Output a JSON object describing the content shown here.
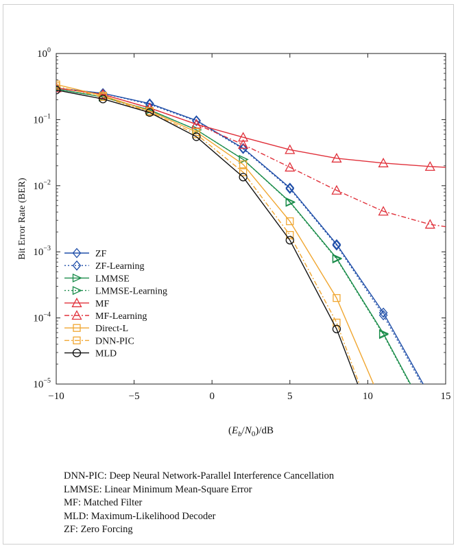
{
  "chart_data": {
    "type": "line",
    "xlabel": "(Eb/N0)/dB",
    "ylabel": "Bit Error Rate (BER)",
    "yscale": "log",
    "xlim": [
      -10,
      15
    ],
    "ylim": [
      1e-05,
      1
    ],
    "x_ticks": [
      "−10",
      "−5",
      "0",
      "5",
      "10",
      "15"
    ],
    "legend_position": "lower-left",
    "grid": false,
    "series": [
      {
        "name": "ZF",
        "color": "#1f4ea8",
        "marker": "diamond",
        "dash": "solid",
        "x": [
          -10,
          -7,
          -4,
          -1,
          2,
          5,
          8,
          11,
          14
        ],
        "y": [
          0.3,
          0.25,
          0.175,
          0.097,
          0.037,
          0.0093,
          0.0013,
          0.00012,
          6.5e-06
        ]
      },
      {
        "name": "ZF-Learning",
        "color": "#1f4ea8",
        "marker": "diamond",
        "dash": "dot",
        "x": [
          -10,
          -7,
          -4,
          -1,
          2,
          5,
          8,
          11,
          14
        ],
        "y": [
          0.3,
          0.25,
          0.17,
          0.095,
          0.036,
          0.009,
          0.00125,
          0.00011,
          6e-06
        ]
      },
      {
        "name": "LMMSE",
        "color": "#1a8c4a",
        "marker": "triangle-right",
        "dash": "solid",
        "x": [
          -10,
          -7,
          -4,
          -1,
          2,
          5,
          8,
          11,
          14
        ],
        "y": [
          0.29,
          0.22,
          0.14,
          0.07,
          0.025,
          0.0057,
          0.0008,
          5.8e-05,
          2.8e-06
        ]
      },
      {
        "name": "LMMSE-Learning",
        "color": "#1a8c4a",
        "marker": "triangle-right",
        "dash": "dot",
        "x": [
          -10,
          -7,
          -4,
          -1,
          2,
          5,
          8,
          11,
          14
        ],
        "y": [
          0.29,
          0.22,
          0.14,
          0.07,
          0.025,
          0.0056,
          0.00078,
          5.6e-05,
          2.7e-06
        ]
      },
      {
        "name": "MF",
        "color": "#e0303a",
        "marker": "triangle-up",
        "dash": "solid",
        "x": [
          -10,
          -7,
          -4,
          -1,
          2,
          5,
          8,
          11,
          14,
          15
        ],
        "y": [
          0.3,
          0.24,
          0.15,
          0.085,
          0.054,
          0.035,
          0.026,
          0.022,
          0.0195,
          0.019
        ]
      },
      {
        "name": "MF-Learning",
        "color": "#e0303a",
        "marker": "triangle-up",
        "dash": "dashdot",
        "x": [
          -10,
          -7,
          -4,
          -1,
          2,
          5,
          8,
          11,
          14,
          15
        ],
        "y": [
          0.3,
          0.24,
          0.15,
          0.085,
          0.042,
          0.019,
          0.0085,
          0.0041,
          0.0026,
          0.0024
        ]
      },
      {
        "name": "Direct-L",
        "color": "#f0a630",
        "marker": "square",
        "dash": "solid",
        "x": [
          -10,
          -7,
          -4,
          -1,
          2,
          5,
          8,
          11
        ],
        "y": [
          0.34,
          0.23,
          0.135,
          0.065,
          0.021,
          0.0029,
          0.0002,
          4.5e-06
        ]
      },
      {
        "name": "DNN-PIC",
        "color": "#f0a630",
        "marker": "square",
        "dash": "dashdot",
        "x": [
          -10,
          -7,
          -4,
          -1,
          2,
          5,
          8,
          10
        ],
        "y": [
          0.32,
          0.22,
          0.13,
          0.06,
          0.016,
          0.0018,
          8.5e-05,
          4.5e-06
        ]
      },
      {
        "name": "MLD",
        "color": "#111111",
        "marker": "circle",
        "dash": "solid",
        "x": [
          -10,
          -7,
          -4,
          -1,
          2,
          5,
          8,
          10
        ],
        "y": [
          0.28,
          0.205,
          0.128,
          0.055,
          0.0135,
          0.0015,
          6.8e-05,
          4e-06
        ]
      }
    ]
  },
  "notes": [
    "DNN-PIC: Deep Neural Network-Parallel Interference Cancellation",
    "LMMSE: Linear Minimum Mean-Square Error",
    "MF: Matched Filter",
    "MLD: Maximum-Likelihood Decoder",
    "ZF: Zero Forcing"
  ]
}
